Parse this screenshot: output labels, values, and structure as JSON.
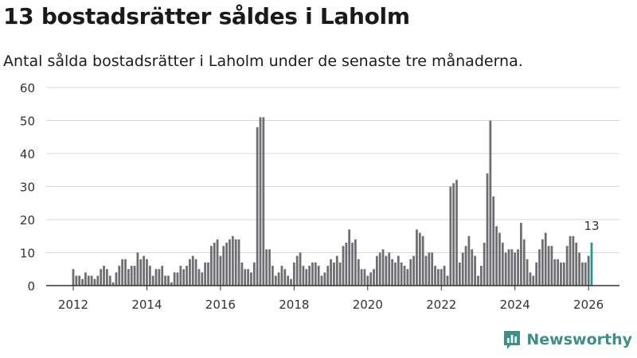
{
  "header": {
    "title": "13 bostadsrätter såldes i Laholm",
    "subtitle": "Antal sålda bostadsrätter i Laholm under de senaste tre månaderna."
  },
  "brand": {
    "name": "Newsworthy",
    "color": "#3d8f87"
  },
  "colors": {
    "bar": "#6e6e72",
    "highlight": "#1a9c93",
    "grid": "#d8d8d8",
    "axis": "#333333"
  },
  "chart_data": {
    "type": "bar",
    "title": "13 bostadsrätter såldes i Laholm",
    "xlabel": "",
    "ylabel": "",
    "ylim": [
      0,
      60
    ],
    "yticks": [
      0,
      10,
      20,
      30,
      40,
      50,
      60
    ],
    "xticks": [
      "2012",
      "2014",
      "2016",
      "2018",
      "2020",
      "2022",
      "2024",
      "2026"
    ],
    "start": "2012-01",
    "frequency": "monthly",
    "highlight_label": "13",
    "series": [
      {
        "name": "Sålda bostadsrätter",
        "values": [
          5,
          3,
          3,
          2,
          4,
          3,
          3,
          2,
          3,
          5,
          6,
          5,
          3,
          1,
          4,
          6,
          8,
          8,
          5,
          6,
          6,
          10,
          8,
          9,
          8,
          6,
          3,
          5,
          5,
          6,
          3,
          3,
          1,
          4,
          4,
          6,
          5,
          6,
          8,
          9,
          8,
          5,
          4,
          7,
          7,
          12,
          13,
          14,
          9,
          12,
          13,
          14,
          15,
          14,
          14,
          7,
          5,
          5,
          4,
          7,
          48,
          51,
          51,
          11,
          11,
          6,
          3,
          4,
          6,
          5,
          3,
          2,
          7,
          9,
          10,
          6,
          5,
          6,
          7,
          7,
          6,
          3,
          4,
          6,
          8,
          7,
          9,
          7,
          12,
          13,
          17,
          13,
          14,
          8,
          5,
          5,
          3,
          4,
          5,
          9,
          10,
          11,
          9,
          10,
          8,
          7,
          9,
          7,
          6,
          5,
          8,
          9,
          17,
          16,
          15,
          9,
          10,
          10,
          6,
          5,
          5,
          6,
          3,
          30,
          31,
          32,
          7,
          10,
          12,
          15,
          11,
          9,
          3,
          6,
          13,
          34,
          50,
          27,
          18,
          16,
          13,
          10,
          11,
          11,
          10,
          11,
          19,
          14,
          8,
          4,
          3,
          7,
          11,
          14,
          16,
          12,
          12,
          8,
          8,
          7,
          7,
          12,
          15,
          15,
          13,
          10,
          7,
          7,
          9,
          13
        ]
      }
    ]
  }
}
